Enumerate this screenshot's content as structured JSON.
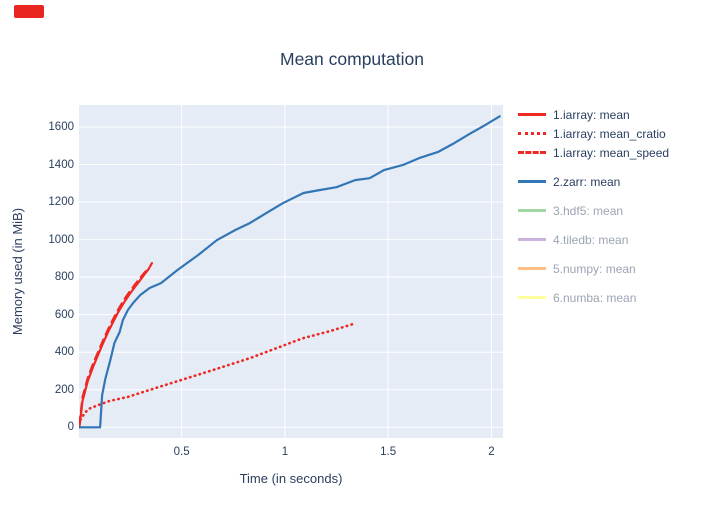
{
  "annotation": {
    "marker_color": "#e8251f"
  },
  "title": "Mean computation",
  "colors": {
    "axis_text": "#2a3f5f",
    "muted_text": "#9ba5b4",
    "plot_bg": "#e5ecf6",
    "grid": "#ffffff"
  },
  "chart_data": {
    "type": "line",
    "title": "Mean computation",
    "xlabel": "Time (in seconds)",
    "ylabel": "Memory used (in MiB)",
    "x_ticks": [
      0.5,
      1,
      1.5,
      2
    ],
    "y_ticks": [
      0,
      200,
      400,
      600,
      800,
      1000,
      1200,
      1400,
      1600
    ],
    "x_range": [
      0.003,
      2.056
    ],
    "y_range": [
      -57,
      1717
    ],
    "grid": true,
    "legend_position": "right",
    "series": [
      {
        "name": "1.iarray: mean",
        "color": "#ee2823",
        "dash": "solid",
        "visible": true,
        "legend_gap_before": false,
        "points": [
          [
            0.005,
            0
          ],
          [
            0.02,
            140
          ],
          [
            0.045,
            245
          ],
          [
            0.07,
            318
          ],
          [
            0.095,
            385
          ],
          [
            0.12,
            450
          ],
          [
            0.145,
            510
          ],
          [
            0.17,
            565
          ],
          [
            0.195,
            618
          ],
          [
            0.22,
            663
          ],
          [
            0.245,
            705
          ],
          [
            0.27,
            742
          ],
          [
            0.295,
            778
          ],
          [
            0.318,
            812
          ],
          [
            0.34,
            843
          ],
          [
            0.356,
            875
          ]
        ]
      },
      {
        "name": "1.iarray: mean_cratio",
        "color": "#ee2823",
        "dash": "dot",
        "visible": true,
        "legend_gap_before": false,
        "points": [
          [
            0.01,
            40
          ],
          [
            0.03,
            75
          ],
          [
            0.05,
            98
          ],
          [
            0.095,
            118
          ],
          [
            0.15,
            140
          ],
          [
            0.24,
            162
          ],
          [
            0.385,
            213
          ],
          [
            0.637,
            300
          ],
          [
            0.83,
            368
          ],
          [
            1.086,
            474
          ],
          [
            1.217,
            512
          ],
          [
            1.329,
            550
          ]
        ]
      },
      {
        "name": "1.iarray: mean_speed",
        "color": "#ee2823",
        "dash": "dash",
        "visible": true,
        "legend_gap_before": false,
        "points": [
          [
            0.005,
            15
          ],
          [
            0.02,
            160
          ],
          [
            0.045,
            262
          ],
          [
            0.07,
            335
          ],
          [
            0.095,
            400
          ],
          [
            0.12,
            465
          ],
          [
            0.145,
            525
          ],
          [
            0.17,
            580
          ],
          [
            0.195,
            632
          ],
          [
            0.22,
            678
          ],
          [
            0.245,
            718
          ],
          [
            0.27,
            755
          ],
          [
            0.295,
            790
          ],
          [
            0.318,
            822
          ],
          [
            0.342,
            847
          ]
        ]
      },
      {
        "name": "2.zarr: mean",
        "color": "#3276b5",
        "dash": "solid",
        "visible": true,
        "legend_gap_before": true,
        "points": [
          [
            0.005,
            0
          ],
          [
            0.105,
            0
          ],
          [
            0.115,
            170
          ],
          [
            0.13,
            255
          ],
          [
            0.155,
            360
          ],
          [
            0.175,
            450
          ],
          [
            0.2,
            508
          ],
          [
            0.215,
            570
          ],
          [
            0.24,
            625
          ],
          [
            0.265,
            662
          ],
          [
            0.3,
            705
          ],
          [
            0.345,
            742
          ],
          [
            0.4,
            768
          ],
          [
            0.48,
            838
          ],
          [
            0.58,
            918
          ],
          [
            0.67,
            997
          ],
          [
            0.76,
            1051
          ],
          [
            0.83,
            1088
          ],
          [
            0.91,
            1141
          ],
          [
            0.99,
            1194
          ],
          [
            1.09,
            1248
          ],
          [
            1.17,
            1264
          ],
          [
            1.25,
            1279
          ],
          [
            1.34,
            1317
          ],
          [
            1.41,
            1327
          ],
          [
            1.48,
            1370
          ],
          [
            1.57,
            1397
          ],
          [
            1.65,
            1434
          ],
          [
            1.74,
            1466
          ],
          [
            1.82,
            1514
          ],
          [
            1.9,
            1567
          ],
          [
            1.97,
            1610
          ],
          [
            2.04,
            1657
          ]
        ]
      },
      {
        "name": "3.hdf5: mean",
        "color": "#a1d6a3",
        "dash": "solid",
        "visible": false,
        "legend_gap_before": true,
        "points": []
      },
      {
        "name": "4.tiledb: mean",
        "color": "#c9b2db",
        "dash": "solid",
        "visible": false,
        "legend_gap_before": true,
        "points": []
      },
      {
        "name": "5.numpy: mean",
        "color": "#ffbe85",
        "dash": "solid",
        "visible": false,
        "legend_gap_before": true,
        "points": []
      },
      {
        "name": "6.numba: mean",
        "color": "#ffff9e",
        "dash": "solid",
        "visible": false,
        "legend_gap_before": true,
        "points": []
      }
    ]
  }
}
